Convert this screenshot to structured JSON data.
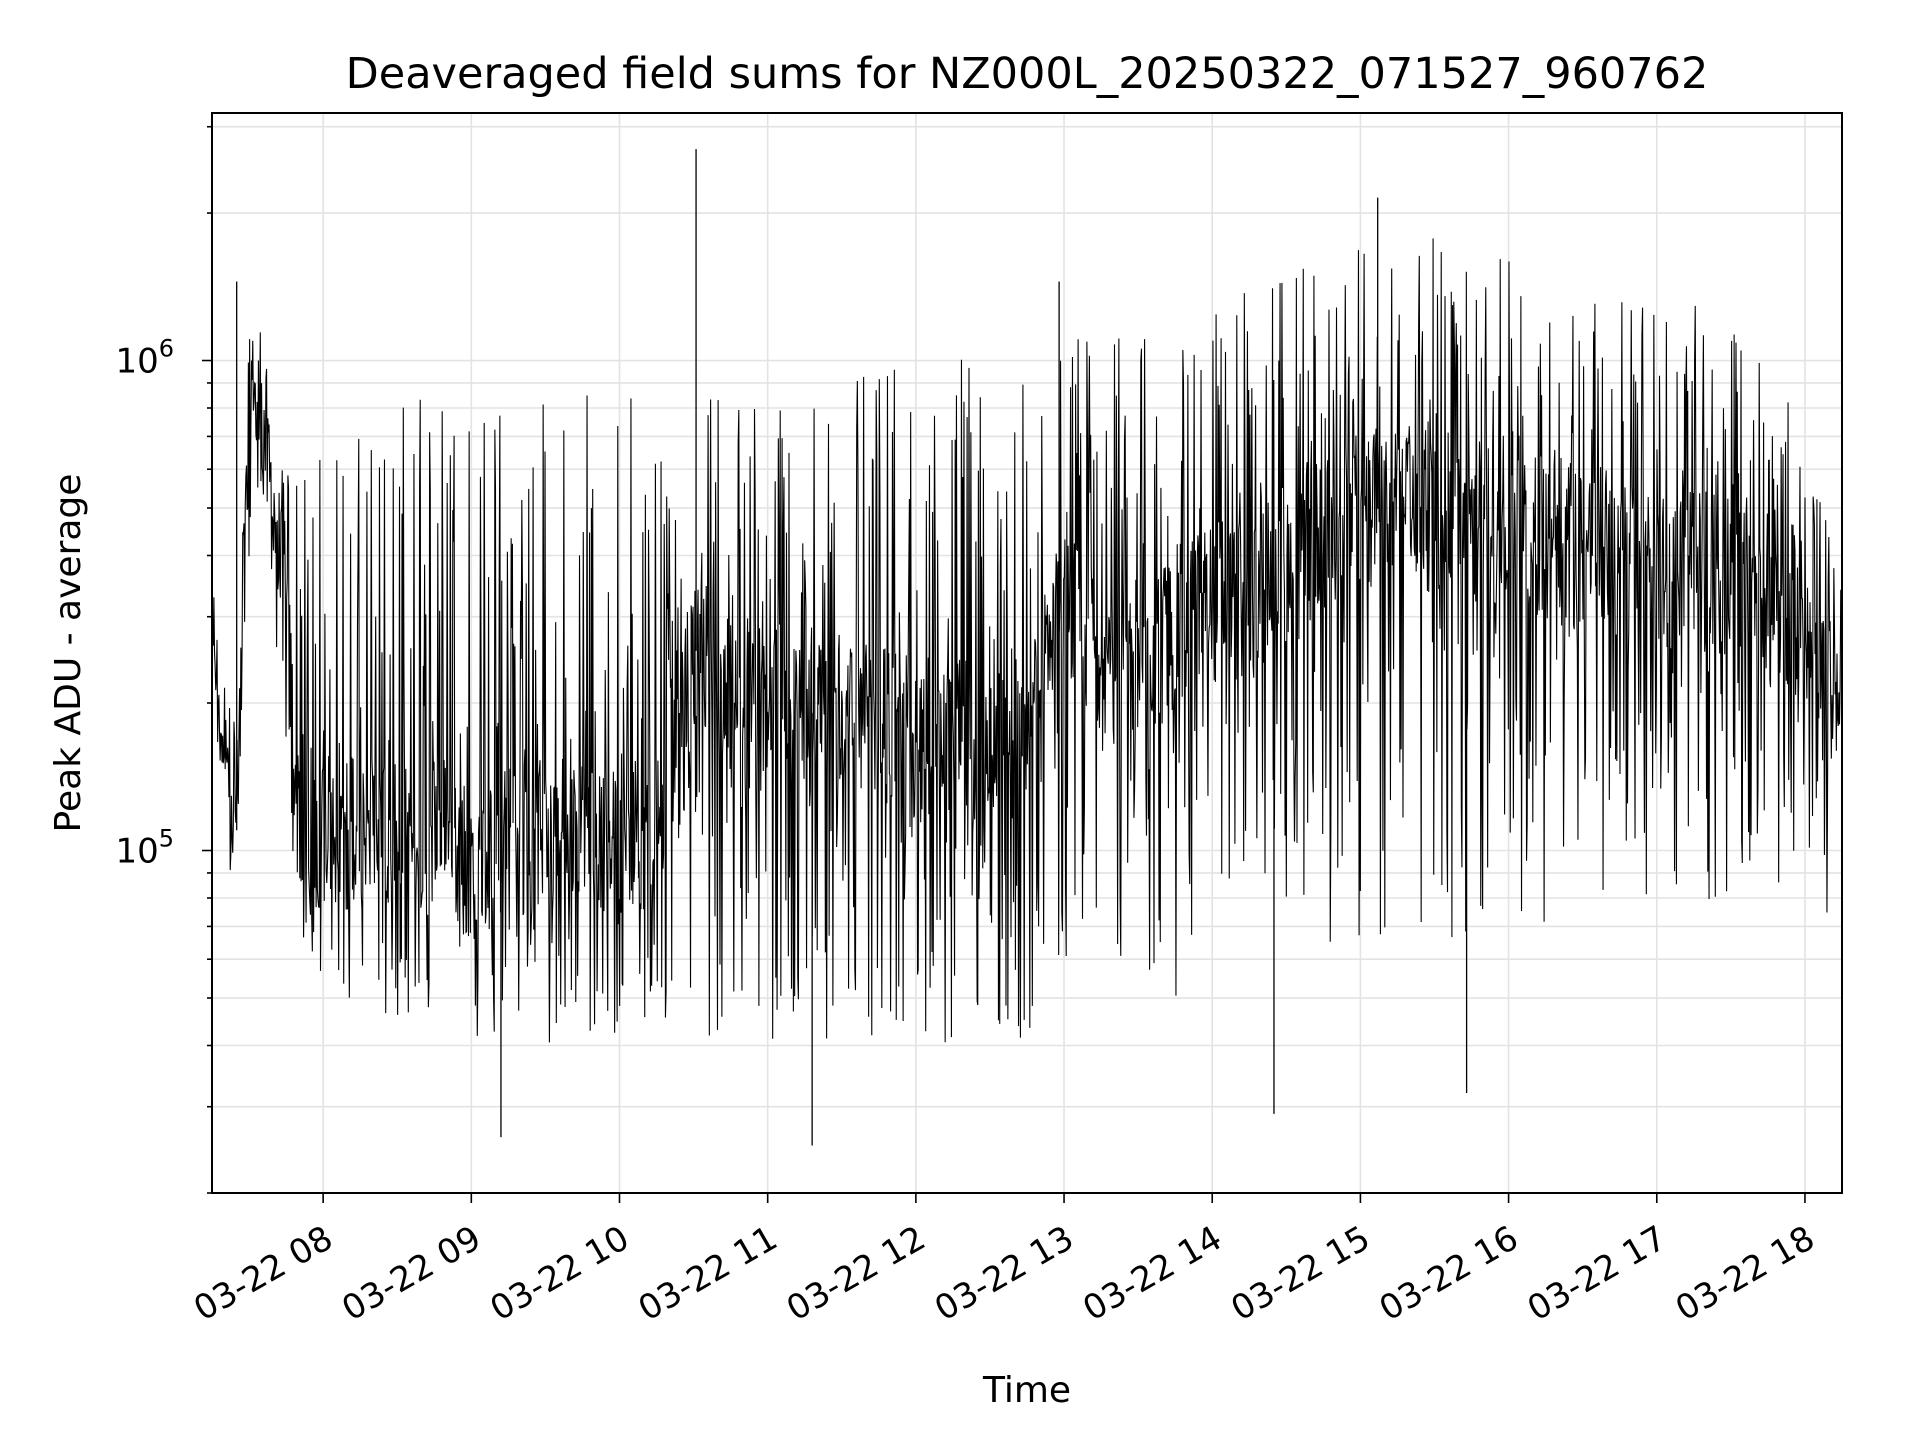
{
  "chart_data": {
    "type": "line",
    "title": "Deaveraged field sums for NZ000L_20250322_071527_960762",
    "xlabel": "Time",
    "ylabel": "Peak ADU - average",
    "yscale": "log",
    "ylim": [
      20000,
      3200000
    ],
    "xlim": [
      "2025-03-22 07:15",
      "2025-03-22 18:15"
    ],
    "x_ticks": [
      "2025-03-22 08:00",
      "2025-03-22 09:00",
      "2025-03-22 10:00",
      "2025-03-22 11:00",
      "2025-03-22 12:00",
      "2025-03-22 13:00",
      "2025-03-22 14:00",
      "2025-03-22 15:00",
      "2025-03-22 16:00",
      "2025-03-22 17:00",
      "2025-03-22 18:00"
    ],
    "x_tick_labels": [
      "03-22 08",
      "03-22 09",
      "03-22 10",
      "03-22 11",
      "03-22 12",
      "03-22 13",
      "03-22 14",
      "03-22 15",
      "03-22 16",
      "03-22 17",
      "03-22 18"
    ],
    "y_ticks": [
      100000,
      1000000
    ],
    "y_tick_labels": [
      {
        "base": "10",
        "exp": "5"
      },
      {
        "base": "10",
        "exp": "6"
      }
    ],
    "grid": true,
    "line_color": "#000000",
    "series": [
      {
        "x": [
          "2025-03-22 07:15",
          "2025-03-22 07:20",
          "2025-03-22 07:25",
          "2025-03-22 07:30",
          "2025-03-22 07:35",
          "2025-03-22 07:40",
          "2025-03-22 07:45",
          "2025-03-22 07:50",
          "2025-03-22 07:55",
          "2025-03-22 08:00",
          "2025-03-22 08:15",
          "2025-03-22 08:30",
          "2025-03-22 08:45",
          "2025-03-22 09:00",
          "2025-03-22 09:15",
          "2025-03-22 09:30",
          "2025-03-22 09:45",
          "2025-03-22 10:00",
          "2025-03-22 10:15",
          "2025-03-22 10:30",
          "2025-03-22 10:45",
          "2025-03-22 11:00",
          "2025-03-22 11:15",
          "2025-03-22 11:30",
          "2025-03-22 11:45",
          "2025-03-22 12:00",
          "2025-03-22 12:15",
          "2025-03-22 12:30",
          "2025-03-22 12:45",
          "2025-03-22 13:00",
          "2025-03-22 13:15",
          "2025-03-22 13:30",
          "2025-03-22 13:45",
          "2025-03-22 14:00",
          "2025-03-22 14:15",
          "2025-03-22 14:30",
          "2025-03-22 14:45",
          "2025-03-22 15:00",
          "2025-03-22 15:15",
          "2025-03-22 15:30",
          "2025-03-22 15:45",
          "2025-03-22 16:00",
          "2025-03-22 16:15",
          "2025-03-22 16:30",
          "2025-03-22 16:45",
          "2025-03-22 17:00",
          "2025-03-22 17:15",
          "2025-03-22 17:30",
          "2025-03-22 17:45",
          "2025-03-22 18:00",
          "2025-03-22 18:15"
        ],
        "y": [
          260000,
          160000,
          110000,
          700000,
          850000,
          450000,
          300000,
          120000,
          110000,
          110000,
          120000,
          100000,
          115000,
          95000,
          100000,
          110000,
          120000,
          105000,
          120000,
          260000,
          200000,
          190000,
          190000,
          195000,
          180000,
          170000,
          165000,
          170000,
          180000,
          300000,
          250000,
          230000,
          280000,
          320000,
          330000,
          380000,
          450000,
          480000,
          520000,
          500000,
          470000,
          460000,
          430000,
          420000,
          400000,
          390000,
          380000,
          360000,
          340000,
          300000,
          180000
        ],
        "low": [
          190000,
          130000,
          95000,
          400000,
          500000,
          300000,
          140000,
          60000,
          55000,
          45000,
          50000,
          45000,
          40000,
          40000,
          42000,
          38000,
          40000,
          42000,
          40000,
          42000,
          40000,
          38000,
          37000,
          40000,
          42000,
          40000,
          40000,
          38000,
          40000,
          55000,
          55000,
          52000,
          50000,
          65000,
          90000,
          80000,
          65000,
          62000,
          60000,
          58000,
          62000,
          65000,
          70000,
          70000,
          80000,
          80000,
          75000,
          75000,
          70000,
          60000,
          70000
        ],
        "high": [
          280000,
          190000,
          200000,
          1200000,
          1000000,
          600000,
          600000,
          650000,
          640000,
          650000,
          800000,
          880000,
          900000,
          900000,
          880000,
          880000,
          900000,
          920000,
          880000,
          900000,
          880000,
          870000,
          860000,
          900000,
          950000,
          970000,
          1000000,
          1050000,
          1100000,
          1200000,
          1100000,
          1150000,
          1200000,
          1300000,
          1400000,
          1500000,
          1600000,
          1750000,
          1900000,
          1800000,
          1650000,
          1600000,
          1500000,
          1450000,
          1400000,
          1350000,
          1300000,
          1200000,
          1000000,
          700000,
          350000
        ]
      }
    ],
    "spikes": [
      {
        "x": "2025-03-22 07:25",
        "y": 1450000
      },
      {
        "x": "2025-03-22 10:31",
        "y": 2700000
      },
      {
        "x": "2025-03-22 14:25",
        "y": 29000
      },
      {
        "x": "2025-03-22 11:18",
        "y": 25000
      },
      {
        "x": "2025-03-22 09:12",
        "y": 26000
      },
      {
        "x": "2025-03-22 15:07",
        "y": 2150000
      },
      {
        "x": "2025-03-22 15:43",
        "y": 32000
      },
      {
        "x": "2025-03-22 12:58",
        "y": 1450000
      }
    ]
  }
}
